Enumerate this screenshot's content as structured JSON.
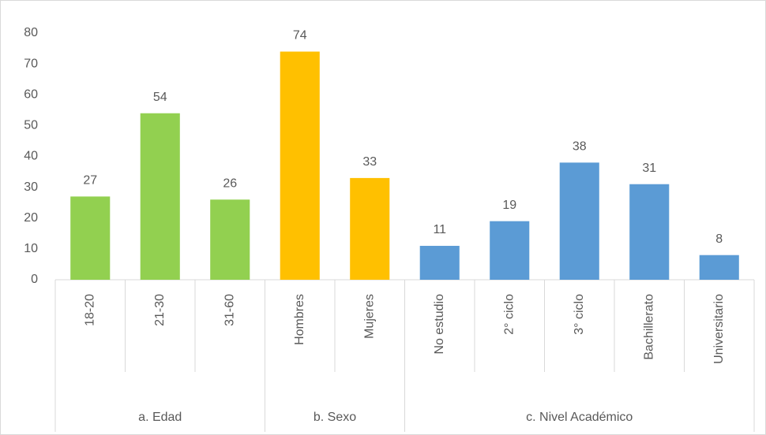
{
  "chart_data": {
    "type": "bar",
    "groups": [
      {
        "name": "a. Edad",
        "color": "#92d050",
        "categories": [
          "18-20",
          "21-30",
          "31-60"
        ],
        "values": [
          27,
          54,
          26
        ]
      },
      {
        "name": "b. Sexo",
        "color": "#ffc000",
        "categories": [
          "Hombres",
          "Mujeres"
        ],
        "values": [
          74,
          33
        ]
      },
      {
        "name": "c. Nivel Académico",
        "color": "#5b9bd5",
        "categories": [
          "No estudio",
          "2° ciclo",
          "3° ciclo",
          "Bachillerato",
          "Universitario"
        ],
        "values": [
          11,
          19,
          38,
          31,
          8
        ]
      }
    ],
    "ylim": [
      0,
      80
    ],
    "yticks": [
      0,
      10,
      20,
      30,
      40,
      50,
      60,
      70,
      80
    ],
    "grid": false
  }
}
